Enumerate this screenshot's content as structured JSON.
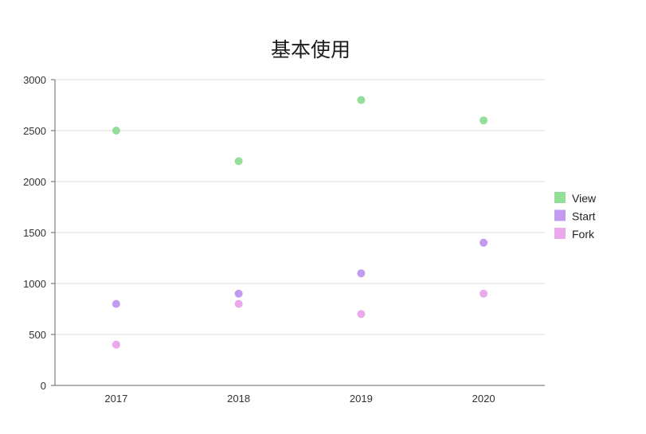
{
  "chart_data": {
    "type": "scatter",
    "title": "基本使用",
    "xlabel": "",
    "ylabel": "",
    "categories": [
      "2017",
      "2018",
      "2019",
      "2020"
    ],
    "ylim": [
      0,
      3000
    ],
    "yticks": [
      "0",
      "500",
      "1000",
      "1500",
      "2000",
      "2500",
      "3000"
    ],
    "grid": "horizontal",
    "legend_position": "right",
    "series": [
      {
        "name": "View",
        "color": "#93de98",
        "values": [
          2500,
          2200,
          2800,
          2600
        ]
      },
      {
        "name": "Start",
        "color": "#c29af0",
        "values": [
          800,
          900,
          1100,
          1400
        ]
      },
      {
        "name": "Fork",
        "color": "#e9a9ea",
        "values": [
          400,
          800,
          700,
          900
        ]
      }
    ]
  }
}
